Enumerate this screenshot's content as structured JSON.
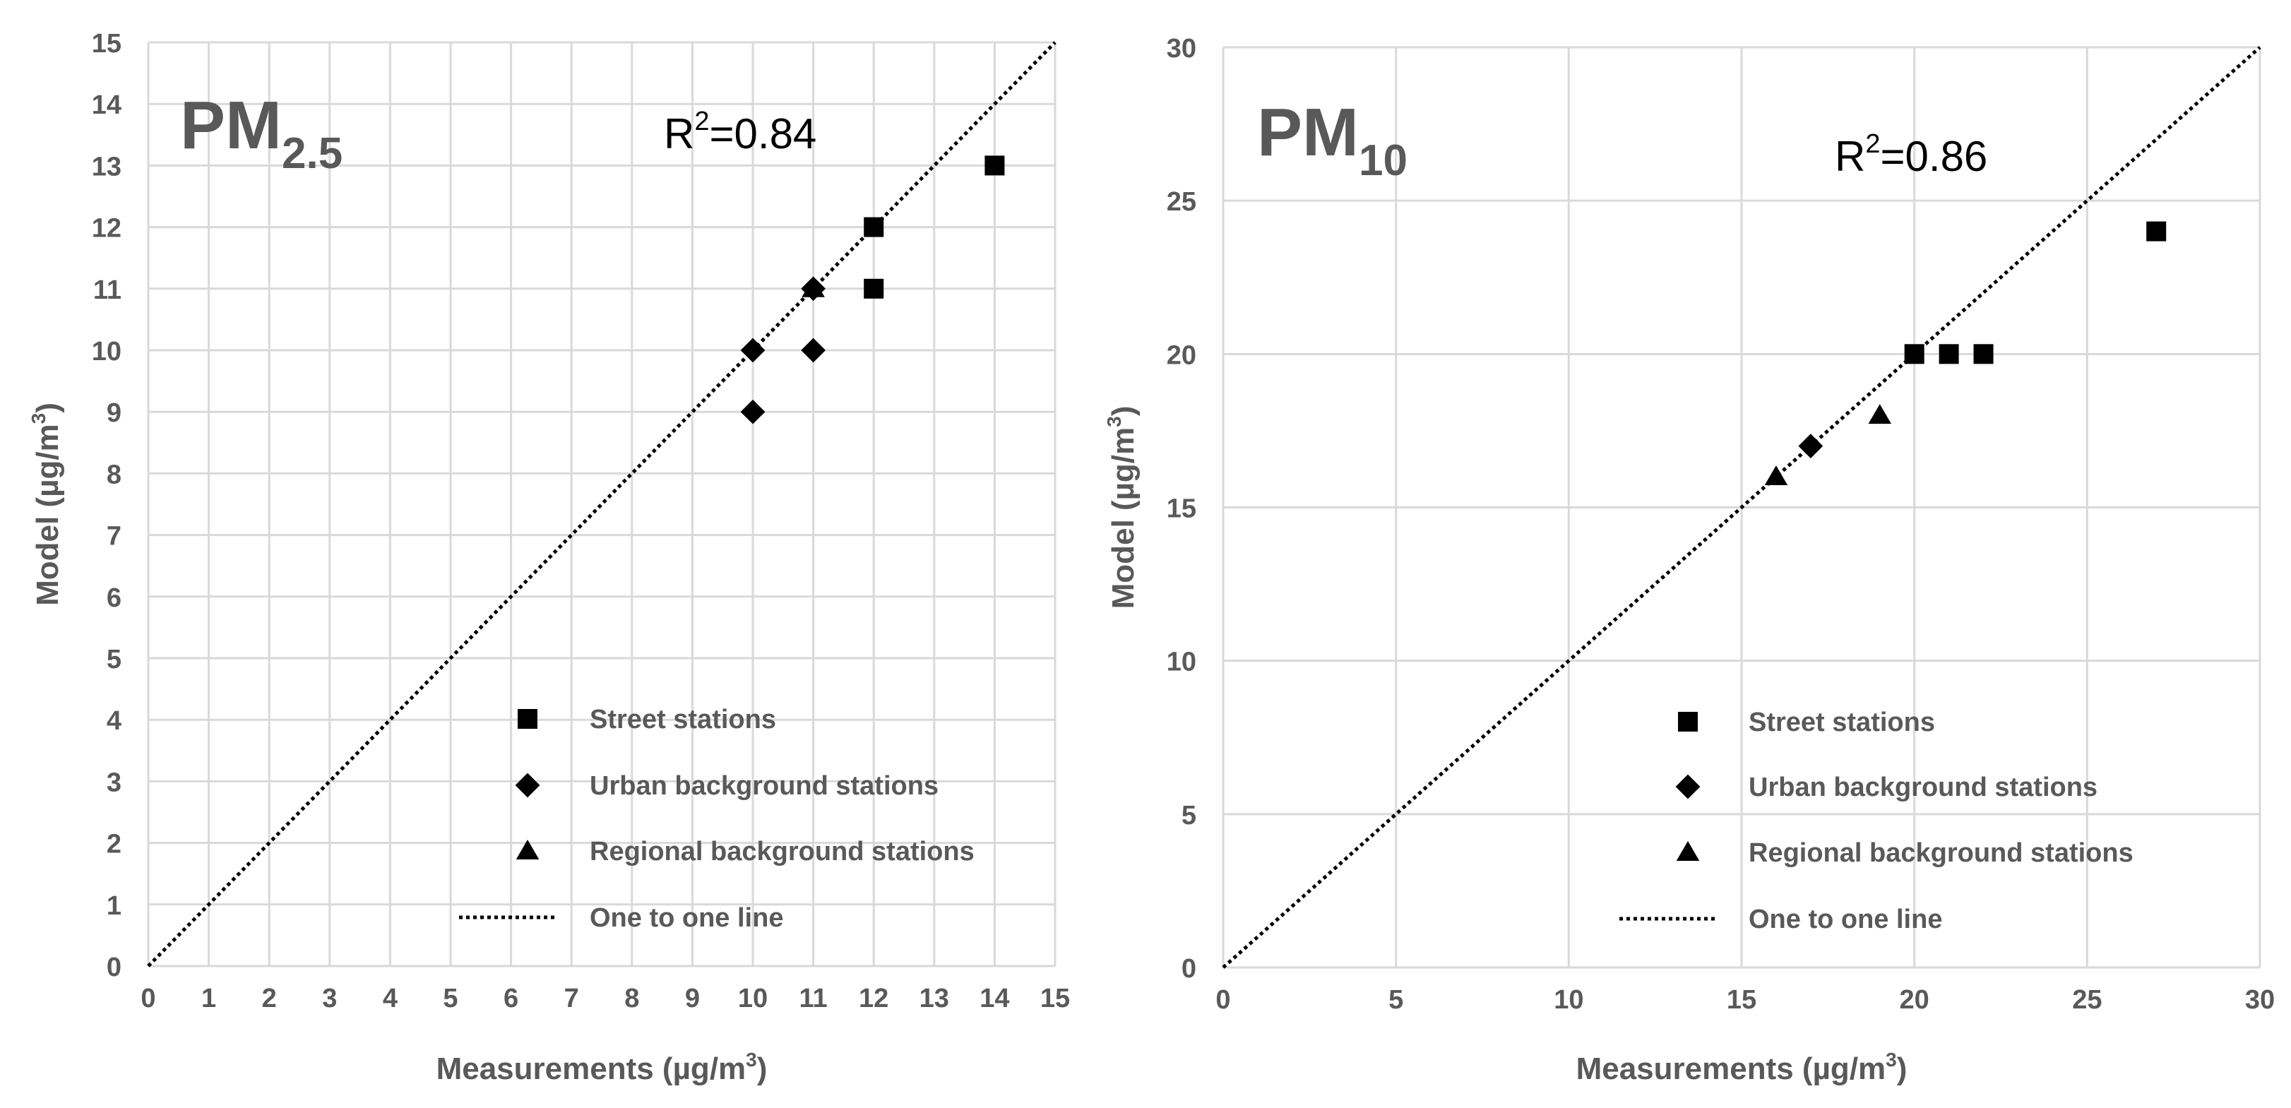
{
  "colors": {
    "grid": "#d9d9d9",
    "text": "#595959",
    "marker": "#000000",
    "background": "#ffffff"
  },
  "chart_data": [
    {
      "type": "scatter",
      "title": "PM",
      "title_sub": "2.5",
      "annotation": {
        "base": "R",
        "sup": "2",
        "value": "=0.84"
      },
      "xlabel": {
        "base": "Measurements (µg/m",
        "sup": "3",
        "end": ")"
      },
      "ylabel": {
        "base": "Model (µg/m",
        "sup": "3",
        "end": ")"
      },
      "xlim": [
        0,
        15
      ],
      "ylim": [
        0,
        15
      ],
      "xticks": [
        0,
        1,
        2,
        3,
        4,
        5,
        6,
        7,
        8,
        9,
        10,
        11,
        12,
        13,
        14,
        15
      ],
      "yticks": [
        0,
        1,
        2,
        3,
        4,
        5,
        6,
        7,
        8,
        9,
        10,
        11,
        12,
        13,
        14,
        15
      ],
      "grid": true,
      "legend_position": "lower-right",
      "series": [
        {
          "name": "Street stations",
          "marker": "square",
          "points": [
            [
              12,
              12
            ],
            [
              12,
              11
            ],
            [
              14,
              13
            ]
          ]
        },
        {
          "name": "Urban background stations",
          "marker": "diamond",
          "points": [
            [
              10,
              10
            ],
            [
              10,
              9
            ],
            [
              11,
              11
            ],
            [
              11,
              10
            ]
          ]
        },
        {
          "name": "Regional background stations",
          "marker": "triangle",
          "points": [
            [
              11,
              11
            ]
          ]
        },
        {
          "name": "One to one line",
          "marker": "dotted-line",
          "points": [
            [
              0,
              0
            ],
            [
              15,
              15
            ]
          ]
        }
      ]
    },
    {
      "type": "scatter",
      "title": "PM",
      "title_sub": "10",
      "annotation": {
        "base": "R",
        "sup": "2",
        "value": "=0.86"
      },
      "xlabel": {
        "base": "Measurements (µg/m",
        "sup": "3",
        "end": ")"
      },
      "ylabel": {
        "base": "Model (µg/m",
        "sup": "3",
        "end": ")"
      },
      "xlim": [
        0,
        30
      ],
      "ylim": [
        0,
        30
      ],
      "xticks": [
        0,
        5,
        10,
        15,
        20,
        25,
        30
      ],
      "yticks": [
        0,
        5,
        10,
        15,
        20,
        25,
        30
      ],
      "grid": true,
      "legend_position": "lower-right",
      "series": [
        {
          "name": "Street stations",
          "marker": "square",
          "points": [
            [
              20,
              20
            ],
            [
              21,
              20
            ],
            [
              22,
              20
            ],
            [
              27,
              24
            ]
          ]
        },
        {
          "name": "Urban background stations",
          "marker": "diamond",
          "points": [
            [
              17,
              17
            ]
          ]
        },
        {
          "name": "Regional background stations",
          "marker": "triangle",
          "points": [
            [
              16,
              16
            ],
            [
              19,
              18
            ]
          ]
        },
        {
          "name": "One to one line",
          "marker": "dotted-line",
          "points": [
            [
              0,
              0
            ],
            [
              30,
              30
            ]
          ]
        }
      ]
    }
  ]
}
